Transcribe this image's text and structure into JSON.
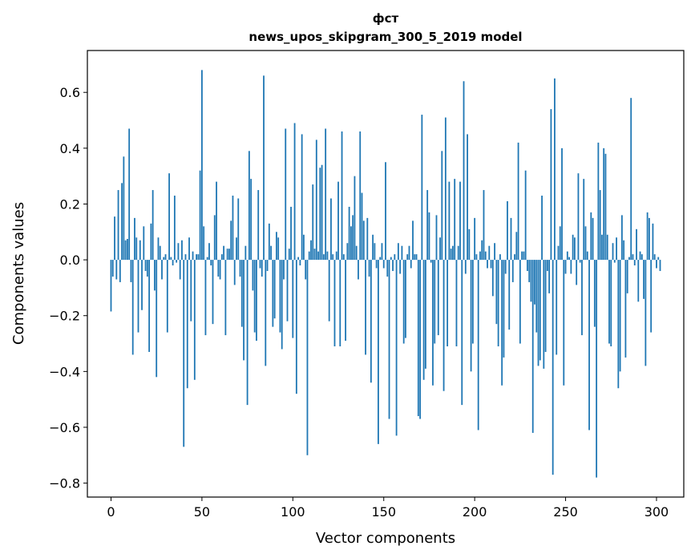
{
  "chart_data": {
    "type": "bar",
    "title": "фст",
    "subtitle": "news_upos_skipgram_300_5_2019 model",
    "xlabel": "Vector components",
    "ylabel": "Components values",
    "xlim": [
      -13,
      315
    ],
    "ylim": [
      -0.85,
      0.75
    ],
    "xticks": [
      0,
      50,
      100,
      150,
      200,
      250,
      300
    ],
    "xtick_labels": [
      "0",
      "50",
      "100",
      "150",
      "200",
      "250",
      "300"
    ],
    "yticks": [
      -0.8,
      -0.6,
      -0.4,
      -0.2,
      0.0,
      0.2,
      0.4,
      0.6
    ],
    "ytick_labels": [
      "−0.8",
      "−0.6",
      "−0.4",
      "−0.2",
      "0.0",
      "0.2",
      "0.4",
      "0.6"
    ],
    "bar_color": "#1f77b4",
    "grid": false,
    "values": [
      -0.185,
      -0.06,
      0.155,
      -0.07,
      0.25,
      -0.08,
      0.275,
      0.37,
      0.07,
      0.075,
      0.47,
      -0.08,
      -0.34,
      0.15,
      0.08,
      -0.26,
      0.07,
      -0.18,
      0.12,
      -0.04,
      -0.06,
      -0.33,
      0.13,
      0.25,
      -0.11,
      -0.42,
      0.08,
      0.05,
      -0.07,
      0.01,
      0.02,
      -0.26,
      0.31,
      0.01,
      -0.02,
      0.23,
      -0.01,
      0.06,
      -0.07,
      0.07,
      -0.67,
      0.02,
      -0.46,
      0.08,
      -0.22,
      0.03,
      -0.43,
      0.02,
      0.02,
      0.32,
      0.68,
      0.12,
      -0.27,
      0.01,
      0.06,
      -0.02,
      -0.23,
      0.16,
      0.28,
      -0.06,
      -0.07,
      0.02,
      0.05,
      -0.27,
      0.04,
      0.04,
      0.14,
      0.23,
      -0.09,
      0.08,
      0.22,
      -0.06,
      -0.24,
      -0.36,
      0.05,
      -0.52,
      0.39,
      0.29,
      -0.11,
      -0.26,
      -0.29,
      0.25,
      -0.03,
      -0.06,
      0.66,
      -0.38,
      -0.04,
      0.13,
      0.05,
      -0.24,
      -0.21,
      0.1,
      0.08,
      -0.26,
      -0.32,
      -0.07,
      0.47,
      -0.22,
      0.04,
      0.19,
      -0.28,
      0.49,
      -0.48,
      0.01,
      -0.02,
      0.45,
      0.09,
      -0.07,
      -0.7,
      0.03,
      0.07,
      0.27,
      0.04,
      0.43,
      0.03,
      0.33,
      0.34,
      0.02,
      0.47,
      0.03,
      -0.22,
      0.22,
      0.02,
      -0.31,
      0.03,
      0.28,
      -0.31,
      0.46,
      0.02,
      -0.29,
      0.06,
      0.19,
      0.12,
      0.16,
      0.3,
      0.05,
      -0.07,
      0.46,
      0.24,
      0.14,
      -0.34,
      0.15,
      -0.06,
      -0.44,
      0.09,
      0.06,
      -0.03,
      -0.66,
      0.01,
      0.06,
      -0.03,
      0.35,
      -0.06,
      -0.57,
      0.01,
      -0.04,
      0.02,
      -0.63,
      0.06,
      -0.05,
      0.05,
      -0.3,
      -0.28,
      0.02,
      0.05,
      -0.03,
      0.14,
      0.02,
      0.02,
      -0.56,
      -0.57,
      0.52,
      -0.43,
      -0.39,
      0.25,
      0.17,
      -0.01,
      -0.45,
      -0.3,
      0.16,
      -0.27,
      0.08,
      0.39,
      -0.47,
      0.51,
      -0.31,
      0.28,
      0.04,
      0.05,
      0.29,
      -0.31,
      0.05,
      0.28,
      -0.52,
      0.64,
      -0.05,
      0.45,
      0.11,
      -0.4,
      -0.3,
      0.15,
      0.02,
      -0.61,
      0.03,
      0.07,
      0.25,
      0.03,
      -0.03,
      0.05,
      -0.03,
      -0.13,
      0.06,
      -0.23,
      -0.31,
      0.02,
      -0.45,
      -0.35,
      -0.05,
      0.21,
      -0.25,
      0.15,
      -0.08,
      0.02,
      0.1,
      0.42,
      -0.3,
      0.03,
      0.03,
      0.32,
      -0.04,
      -0.08,
      -0.15,
      -0.62,
      -0.16,
      -0.26,
      -0.38,
      -0.36,
      0.23,
      -0.39,
      -0.33,
      -0.04,
      -0.12,
      0.54,
      -0.77,
      0.65,
      -0.34,
      0.05,
      0.12,
      0.4,
      -0.45,
      -0.05,
      0.03,
      0.01,
      -0.05,
      0.09,
      0.08,
      -0.09,
      0.31,
      -0.01,
      -0.27,
      0.29,
      0.12,
      0.03,
      -0.61,
      0.17,
      0.15,
      -0.24,
      -0.78,
      0.42,
      0.25,
      0.09,
      0.4,
      0.38,
      0.09,
      -0.3,
      -0.31,
      0.06,
      -0.01,
      0.08,
      -0.46,
      -0.4,
      0.16,
      0.07,
      -0.35,
      -0.12,
      0.01,
      0.58,
      0.02,
      -0.02,
      0.11,
      -0.15,
      0.03,
      0.02,
      -0.14,
      -0.38,
      0.17,
      0.15,
      -0.26,
      0.13,
      0.02,
      -0.03,
      0.01,
      -0.04
    ]
  }
}
